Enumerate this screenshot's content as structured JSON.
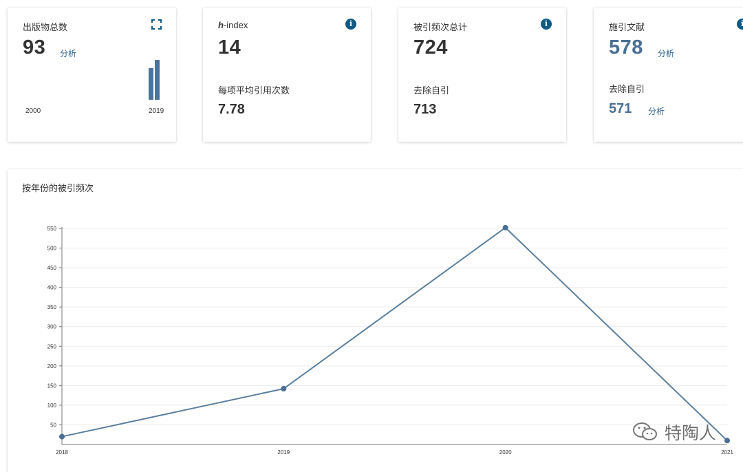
{
  "cards": {
    "publications": {
      "title": "出版物总数",
      "value": "93",
      "link": "分析",
      "icon": "expand-icon",
      "year_start": "2000",
      "year_end": "2019"
    },
    "hindex": {
      "title_prefix": "h",
      "title_suffix": "-index",
      "value": "14",
      "sub_label": "每项平均引用次数",
      "sub_value": "7.78",
      "icon": "info-icon"
    },
    "citations": {
      "title": "被引频次总计",
      "value": "724",
      "sub_label": "去除自引",
      "sub_value": "713",
      "icon": "info-icon"
    },
    "citing": {
      "title": "施引文献",
      "value": "578",
      "link": "分析",
      "sub_label": "去除自引",
      "sub_value": "571",
      "sub_link": "分析",
      "icon": "info-icon"
    }
  },
  "chart": {
    "title": "按年份的被引频次"
  },
  "chart_data": {
    "type": "line",
    "title": "按年份的被引频次",
    "x": [
      "2018",
      "2019",
      "2020",
      "2021"
    ],
    "series": [
      {
        "values": [
          20,
          142,
          552,
          10
        ]
      }
    ],
    "yticks": [
      50,
      100,
      150,
      200,
      250,
      300,
      350,
      400,
      450,
      500,
      550
    ],
    "ylim": [
      0,
      550
    ],
    "grid": true,
    "line_color": "#5b7f9f"
  },
  "watermark": {
    "text": "特陶人",
    "icon": "wechat-icon"
  }
}
